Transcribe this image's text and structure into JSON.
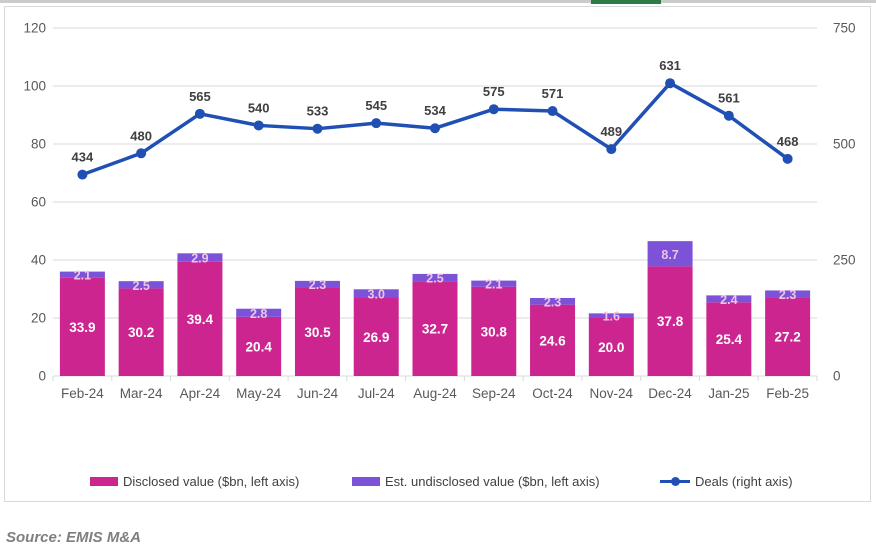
{
  "page": {
    "source_note": "Source: EMIS M&A",
    "accents": {
      "strip_color": "#cbcbcb",
      "green_color": "#2e7c43"
    }
  },
  "chart_data": {
    "type": "combo-bar-line",
    "title": "",
    "categories": [
      "Feb-24",
      "Mar-24",
      "Apr-24",
      "May-24",
      "Jun-24",
      "Jul-24",
      "Aug-24",
      "Sep-24",
      "Oct-24",
      "Nov-24",
      "Dec-24",
      "Jan-25",
      "Feb-25"
    ],
    "series": [
      {
        "name": "Disclosed value ($bn, left axis)",
        "type": "bar",
        "axis": "left",
        "color": "#cc2590",
        "label_color": "#ffffff",
        "values": [
          33.9,
          30.2,
          39.4,
          20.4,
          30.5,
          26.9,
          32.7,
          30.8,
          24.6,
          20.0,
          37.8,
          25.4,
          27.2
        ]
      },
      {
        "name": "Est. undisclosed value ($bn, left axis)",
        "type": "bar",
        "axis": "left",
        "color": "#7b52d8",
        "label_color": "#f0c4e4",
        "values": [
          2.1,
          2.5,
          2.9,
          2.8,
          2.3,
          3.0,
          2.5,
          2.1,
          2.3,
          1.6,
          8.7,
          2.4,
          2.3
        ]
      },
      {
        "name": "Deals (right axis)",
        "type": "line",
        "axis": "right",
        "color": "#2050b4",
        "label_color": "#404040",
        "values": [
          434,
          480,
          565,
          540,
          533,
          545,
          534,
          575,
          571,
          489,
          631,
          561,
          468
        ]
      }
    ],
    "left_axis": {
      "min": 0,
      "max": 120,
      "ticks": [
        0,
        20,
        40,
        60,
        80,
        100,
        120
      ]
    },
    "right_axis": {
      "min": 0,
      "max": 750,
      "ticks": [
        0,
        250,
        500,
        750
      ]
    },
    "grid": true,
    "legend_position": "bottom",
    "grid_color": "#d9d9d9",
    "axis_text_color": "#595959",
    "legend_text_color": "#404040"
  }
}
